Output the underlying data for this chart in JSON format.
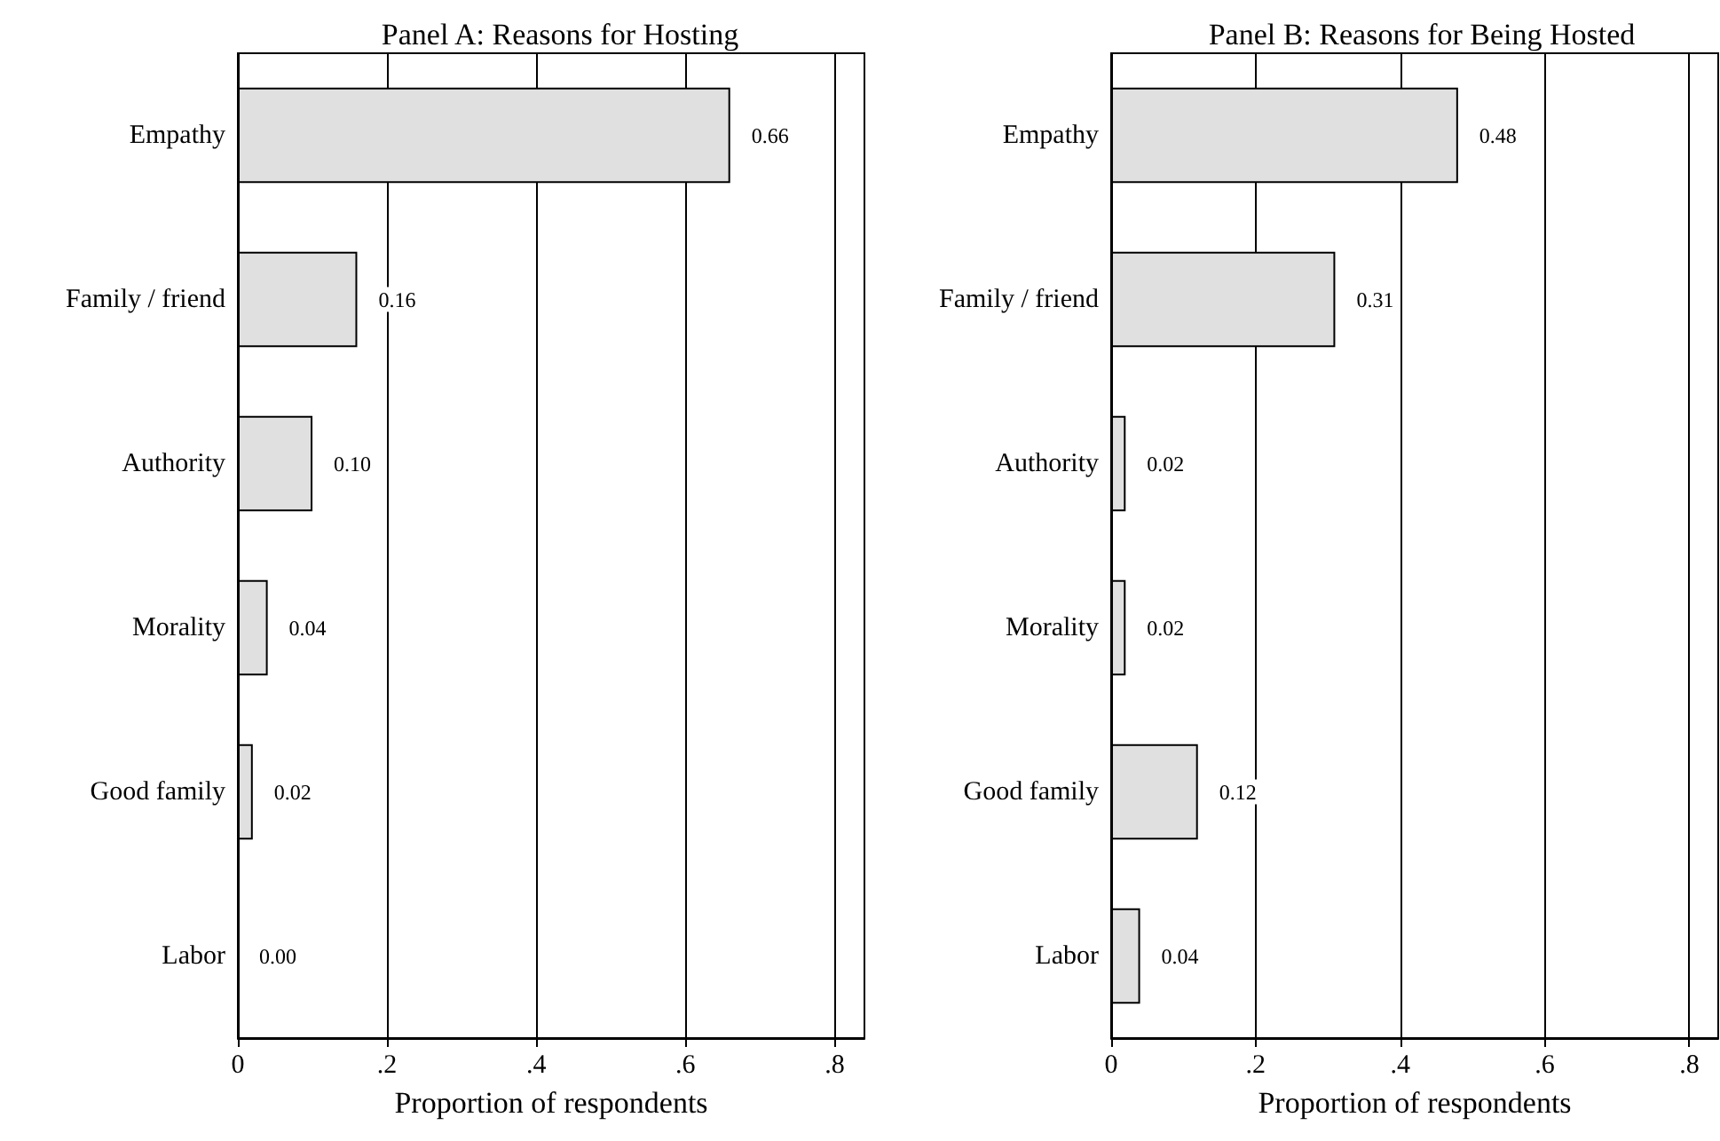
{
  "chart_data": [
    {
      "type": "bar",
      "orientation": "horizontal",
      "title": "Panel A: Reasons for Hosting",
      "xlabel": "Proportion of respondents",
      "categories": [
        "Empathy",
        "Family / friend",
        "Authority",
        "Morality",
        "Good family",
        "Labor"
      ],
      "values": [
        0.66,
        0.16,
        0.1,
        0.04,
        0.02,
        0.0
      ],
      "value_labels": [
        "0.66",
        "0.16",
        "0.10",
        "0.04",
        "0.02",
        "0.00"
      ],
      "color": "#e0e0e0",
      "xlim": [
        0,
        0.84
      ],
      "xticks": [
        0,
        {
          "value": 0.2,
          "label": ".2"
        },
        {
          "value": 0.4,
          "label": ".4"
        },
        {
          "value": 0.6,
          "label": ".6"
        },
        {
          "value": 0.8,
          "label": ".8"
        }
      ],
      "grid": "x"
    },
    {
      "type": "bar",
      "orientation": "horizontal",
      "title": "Panel B: Reasons for Being Hosted",
      "xlabel": "Proportion of respondents",
      "categories": [
        "Empathy",
        "Family / friend",
        "Authority",
        "Morality",
        "Good family",
        "Labor"
      ],
      "values": [
        0.48,
        0.31,
        0.02,
        0.02,
        0.12,
        0.04
      ],
      "value_labels": [
        "0.48",
        "0.31",
        "0.02",
        "0.02",
        "0.12",
        "0.04"
      ],
      "color": "#e0e0e0",
      "xlim": [
        0,
        0.84
      ],
      "xticks": [
        0,
        {
          "value": 0.2,
          "label": ".2"
        },
        {
          "value": 0.4,
          "label": ".4"
        },
        {
          "value": 0.6,
          "label": ".6"
        },
        {
          "value": 0.8,
          "label": ".8"
        }
      ],
      "grid": "x"
    }
  ]
}
